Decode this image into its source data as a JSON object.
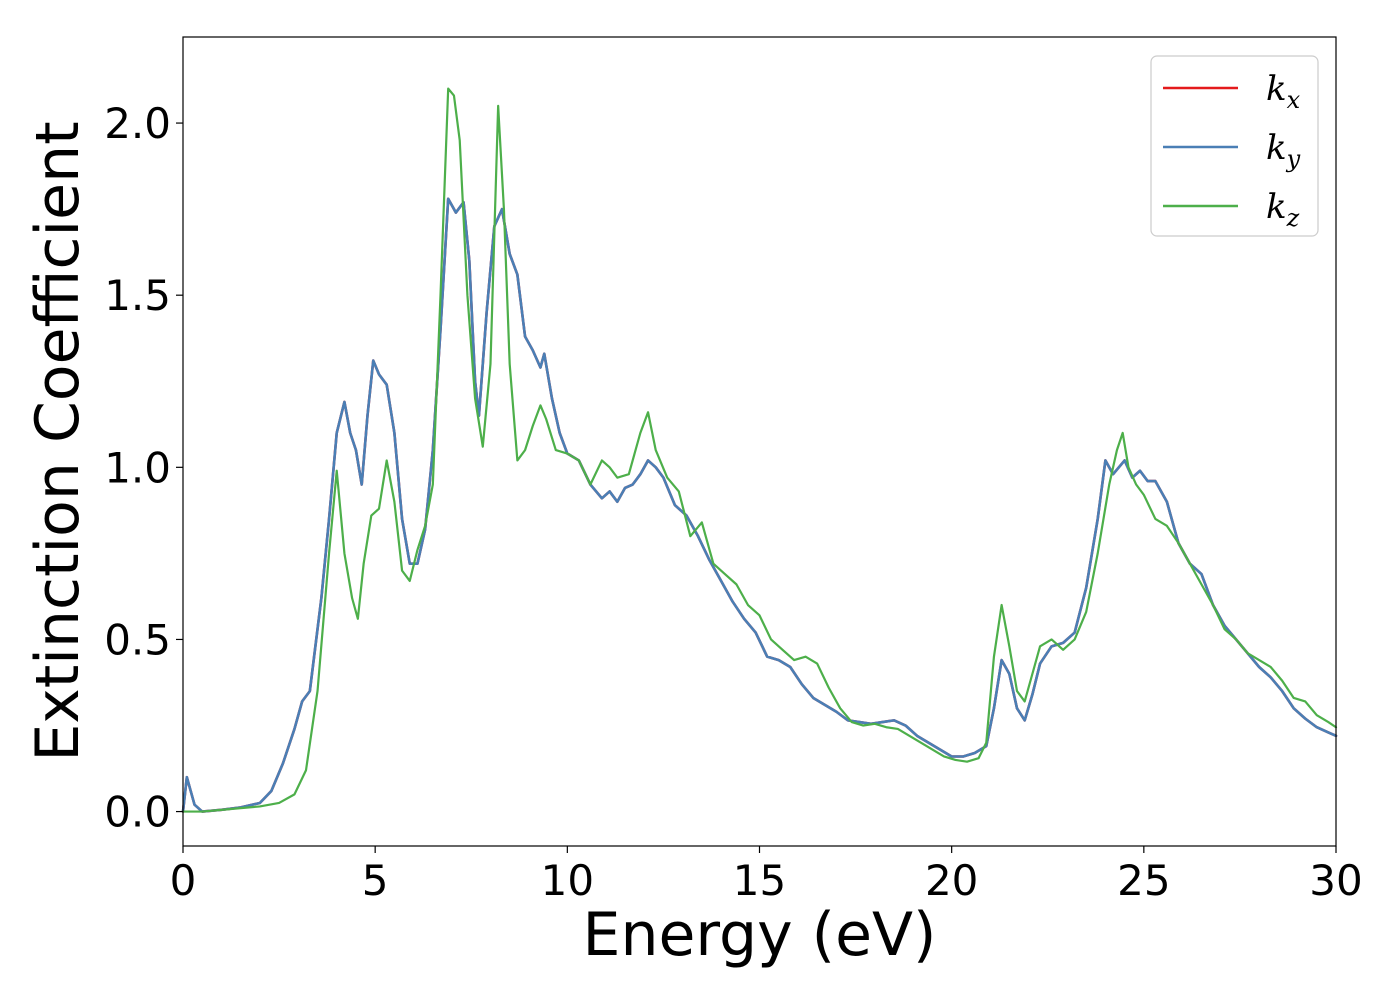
{
  "chart_data": {
    "type": "line",
    "xlabel": "Energy (eV)",
    "ylabel": "Extinction Coefficient",
    "xlim": [
      0,
      30
    ],
    "ylim": [
      -0.1,
      2.25
    ],
    "xticks": [
      0,
      5,
      10,
      15,
      20,
      25,
      30
    ],
    "xtick_labels": [
      "0",
      "5",
      "10",
      "15",
      "20",
      "25",
      "30"
    ],
    "yticks": [
      0.0,
      0.5,
      1.0,
      1.5,
      2.0
    ],
    "ytick_labels": [
      "0.0",
      "0.5",
      "1.0",
      "1.5",
      "2.0"
    ],
    "grid": false,
    "legend_position": "top-right",
    "series": [
      {
        "name": "k_x",
        "legend_main": "k",
        "legend_sub": "x",
        "color": "#e41a1c",
        "x": [
          0,
          0.1,
          0.2,
          0.3,
          0.5,
          1,
          1.5,
          2,
          2.3,
          2.6,
          2.9,
          3.1,
          3.3,
          3.6,
          3.8,
          4.0,
          4.2,
          4.35,
          4.5,
          4.65,
          4.8,
          4.95,
          5.1,
          5.3,
          5.5,
          5.7,
          5.9,
          6.1,
          6.3,
          6.5,
          6.7,
          6.9,
          7.1,
          7.3,
          7.45,
          7.6,
          7.7,
          7.9,
          8.1,
          8.3,
          8.5,
          8.7,
          8.9,
          9.1,
          9.3,
          9.4,
          9.6,
          9.8,
          10.0,
          10.3,
          10.6,
          10.9,
          11.1,
          11.3,
          11.5,
          11.7,
          11.9,
          12.1,
          12.3,
          12.5,
          12.8,
          13.1,
          13.4,
          13.7,
          14.0,
          14.3,
          14.6,
          14.9,
          15.2,
          15.5,
          15.8,
          16.1,
          16.4,
          16.7,
          17.0,
          17.3,
          17.6,
          17.9,
          18.2,
          18.5,
          18.8,
          19.1,
          19.4,
          19.7,
          20.0,
          20.3,
          20.6,
          20.9,
          21.1,
          21.3,
          21.5,
          21.7,
          21.9,
          22.1,
          22.3,
          22.6,
          22.9,
          23.2,
          23.5,
          23.8,
          24.0,
          24.2,
          24.5,
          24.7,
          24.9,
          25.1,
          25.3,
          25.6,
          25.9,
          26.2,
          26.5,
          26.8,
          27.1,
          27.4,
          27.7,
          28.0,
          28.3,
          28.6,
          28.9,
          29.2,
          29.5,
          29.8,
          30.0
        ],
        "y": [
          0.0,
          0.1,
          0.06,
          0.02,
          0.0,
          0.005,
          0.012,
          0.025,
          0.06,
          0.14,
          0.24,
          0.32,
          0.35,
          0.62,
          0.85,
          1.1,
          1.19,
          1.1,
          1.05,
          0.95,
          1.15,
          1.31,
          1.27,
          1.24,
          1.1,
          0.85,
          0.72,
          0.72,
          0.82,
          1.05,
          1.4,
          1.78,
          1.74,
          1.77,
          1.6,
          1.25,
          1.15,
          1.45,
          1.7,
          1.75,
          1.62,
          1.56,
          1.38,
          1.34,
          1.29,
          1.33,
          1.2,
          1.1,
          1.04,
          1.02,
          0.95,
          0.91,
          0.93,
          0.9,
          0.94,
          0.95,
          0.98,
          1.02,
          1.0,
          0.97,
          0.89,
          0.86,
          0.8,
          0.73,
          0.67,
          0.61,
          0.56,
          0.52,
          0.45,
          0.44,
          0.42,
          0.37,
          0.33,
          0.31,
          0.29,
          0.265,
          0.26,
          0.255,
          0.26,
          0.265,
          0.25,
          0.22,
          0.2,
          0.18,
          0.16,
          0.16,
          0.17,
          0.19,
          0.3,
          0.44,
          0.4,
          0.3,
          0.265,
          0.34,
          0.43,
          0.48,
          0.49,
          0.52,
          0.65,
          0.85,
          1.02,
          0.98,
          1.02,
          0.97,
          0.99,
          0.96,
          0.96,
          0.9,
          0.78,
          0.72,
          0.69,
          0.6,
          0.54,
          0.5,
          0.46,
          0.42,
          0.39,
          0.35,
          0.3,
          0.27,
          0.245,
          0.23,
          0.22
        ]
      },
      {
        "name": "k_y",
        "legend_main": "k",
        "legend_sub": "y",
        "color": "#4a7fb5",
        "x": [
          0,
          0.1,
          0.2,
          0.3,
          0.5,
          1,
          1.5,
          2,
          2.3,
          2.6,
          2.9,
          3.1,
          3.3,
          3.6,
          3.8,
          4.0,
          4.2,
          4.35,
          4.5,
          4.65,
          4.8,
          4.95,
          5.1,
          5.3,
          5.5,
          5.7,
          5.9,
          6.1,
          6.3,
          6.5,
          6.7,
          6.9,
          7.1,
          7.3,
          7.45,
          7.6,
          7.7,
          7.9,
          8.1,
          8.3,
          8.5,
          8.7,
          8.9,
          9.1,
          9.3,
          9.4,
          9.6,
          9.8,
          10.0,
          10.3,
          10.6,
          10.9,
          11.1,
          11.3,
          11.5,
          11.7,
          11.9,
          12.1,
          12.3,
          12.5,
          12.8,
          13.1,
          13.4,
          13.7,
          14.0,
          14.3,
          14.6,
          14.9,
          15.2,
          15.5,
          15.8,
          16.1,
          16.4,
          16.7,
          17.0,
          17.3,
          17.6,
          17.9,
          18.2,
          18.5,
          18.8,
          19.1,
          19.4,
          19.7,
          20.0,
          20.3,
          20.6,
          20.9,
          21.1,
          21.3,
          21.5,
          21.7,
          21.9,
          22.1,
          22.3,
          22.6,
          22.9,
          23.2,
          23.5,
          23.8,
          24.0,
          24.2,
          24.5,
          24.7,
          24.9,
          25.1,
          25.3,
          25.6,
          25.9,
          26.2,
          26.5,
          26.8,
          27.1,
          27.4,
          27.7,
          28.0,
          28.3,
          28.6,
          28.9,
          29.2,
          29.5,
          29.8,
          30.0
        ],
        "y": [
          0.0,
          0.1,
          0.06,
          0.02,
          0.0,
          0.005,
          0.012,
          0.025,
          0.06,
          0.14,
          0.24,
          0.32,
          0.35,
          0.62,
          0.85,
          1.1,
          1.19,
          1.1,
          1.05,
          0.95,
          1.15,
          1.31,
          1.27,
          1.24,
          1.1,
          0.85,
          0.72,
          0.72,
          0.82,
          1.05,
          1.4,
          1.78,
          1.74,
          1.77,
          1.6,
          1.25,
          1.15,
          1.45,
          1.7,
          1.75,
          1.62,
          1.56,
          1.38,
          1.34,
          1.29,
          1.33,
          1.2,
          1.1,
          1.04,
          1.02,
          0.95,
          0.91,
          0.93,
          0.9,
          0.94,
          0.95,
          0.98,
          1.02,
          1.0,
          0.97,
          0.89,
          0.86,
          0.8,
          0.73,
          0.67,
          0.61,
          0.56,
          0.52,
          0.45,
          0.44,
          0.42,
          0.37,
          0.33,
          0.31,
          0.29,
          0.265,
          0.26,
          0.255,
          0.26,
          0.265,
          0.25,
          0.22,
          0.2,
          0.18,
          0.16,
          0.16,
          0.17,
          0.19,
          0.3,
          0.44,
          0.4,
          0.3,
          0.265,
          0.34,
          0.43,
          0.48,
          0.49,
          0.52,
          0.65,
          0.85,
          1.02,
          0.98,
          1.02,
          0.97,
          0.99,
          0.96,
          0.96,
          0.9,
          0.78,
          0.72,
          0.69,
          0.6,
          0.54,
          0.5,
          0.46,
          0.42,
          0.39,
          0.35,
          0.3,
          0.27,
          0.245,
          0.23,
          0.22
        ]
      },
      {
        "name": "k_z",
        "legend_main": "k",
        "legend_sub": "z",
        "color": "#4daf4a",
        "x": [
          0,
          0.5,
          1,
          1.5,
          2,
          2.5,
          2.9,
          3.2,
          3.5,
          3.8,
          4.0,
          4.2,
          4.4,
          4.55,
          4.7,
          4.9,
          5.1,
          5.3,
          5.5,
          5.7,
          5.9,
          6.1,
          6.3,
          6.5,
          6.7,
          6.9,
          7.05,
          7.2,
          7.4,
          7.6,
          7.8,
          8.0,
          8.2,
          8.35,
          8.5,
          8.7,
          8.9,
          9.1,
          9.3,
          9.45,
          9.7,
          10.0,
          10.3,
          10.6,
          10.9,
          11.1,
          11.3,
          11.6,
          11.9,
          12.1,
          12.3,
          12.6,
          12.9,
          13.2,
          13.5,
          13.8,
          14.1,
          14.4,
          14.7,
          15.0,
          15.3,
          15.6,
          15.9,
          16.2,
          16.5,
          16.8,
          17.1,
          17.4,
          17.7,
          18.0,
          18.3,
          18.6,
          18.9,
          19.2,
          19.5,
          19.8,
          20.1,
          20.4,
          20.7,
          20.9,
          21.1,
          21.3,
          21.5,
          21.7,
          21.9,
          22.1,
          22.3,
          22.6,
          22.9,
          23.2,
          23.5,
          23.8,
          24.1,
          24.3,
          24.45,
          24.6,
          24.8,
          25.0,
          25.3,
          25.6,
          25.9,
          26.2,
          26.5,
          26.8,
          27.1,
          27.4,
          27.7,
          28.0,
          28.3,
          28.6,
          28.9,
          29.2,
          29.5,
          29.8,
          30.0
        ],
        "y": [
          0.0,
          0.0,
          0.005,
          0.01,
          0.015,
          0.025,
          0.05,
          0.12,
          0.35,
          0.75,
          0.99,
          0.75,
          0.62,
          0.56,
          0.72,
          0.86,
          0.88,
          1.02,
          0.9,
          0.7,
          0.67,
          0.76,
          0.83,
          0.95,
          1.5,
          2.1,
          2.08,
          1.95,
          1.5,
          1.2,
          1.06,
          1.3,
          2.05,
          1.75,
          1.3,
          1.02,
          1.05,
          1.12,
          1.18,
          1.14,
          1.05,
          1.04,
          1.02,
          0.95,
          1.02,
          1.0,
          0.97,
          0.98,
          1.1,
          1.16,
          1.05,
          0.97,
          0.93,
          0.8,
          0.84,
          0.72,
          0.69,
          0.66,
          0.6,
          0.57,
          0.5,
          0.47,
          0.44,
          0.45,
          0.43,
          0.36,
          0.3,
          0.26,
          0.25,
          0.255,
          0.245,
          0.24,
          0.22,
          0.2,
          0.18,
          0.16,
          0.15,
          0.145,
          0.155,
          0.2,
          0.45,
          0.6,
          0.48,
          0.35,
          0.32,
          0.4,
          0.48,
          0.5,
          0.47,
          0.5,
          0.58,
          0.75,
          0.95,
          1.05,
          1.1,
          1.0,
          0.95,
          0.92,
          0.85,
          0.83,
          0.78,
          0.72,
          0.66,
          0.6,
          0.53,
          0.5,
          0.46,
          0.44,
          0.42,
          0.38,
          0.33,
          0.32,
          0.28,
          0.26,
          0.245
        ]
      }
    ]
  }
}
